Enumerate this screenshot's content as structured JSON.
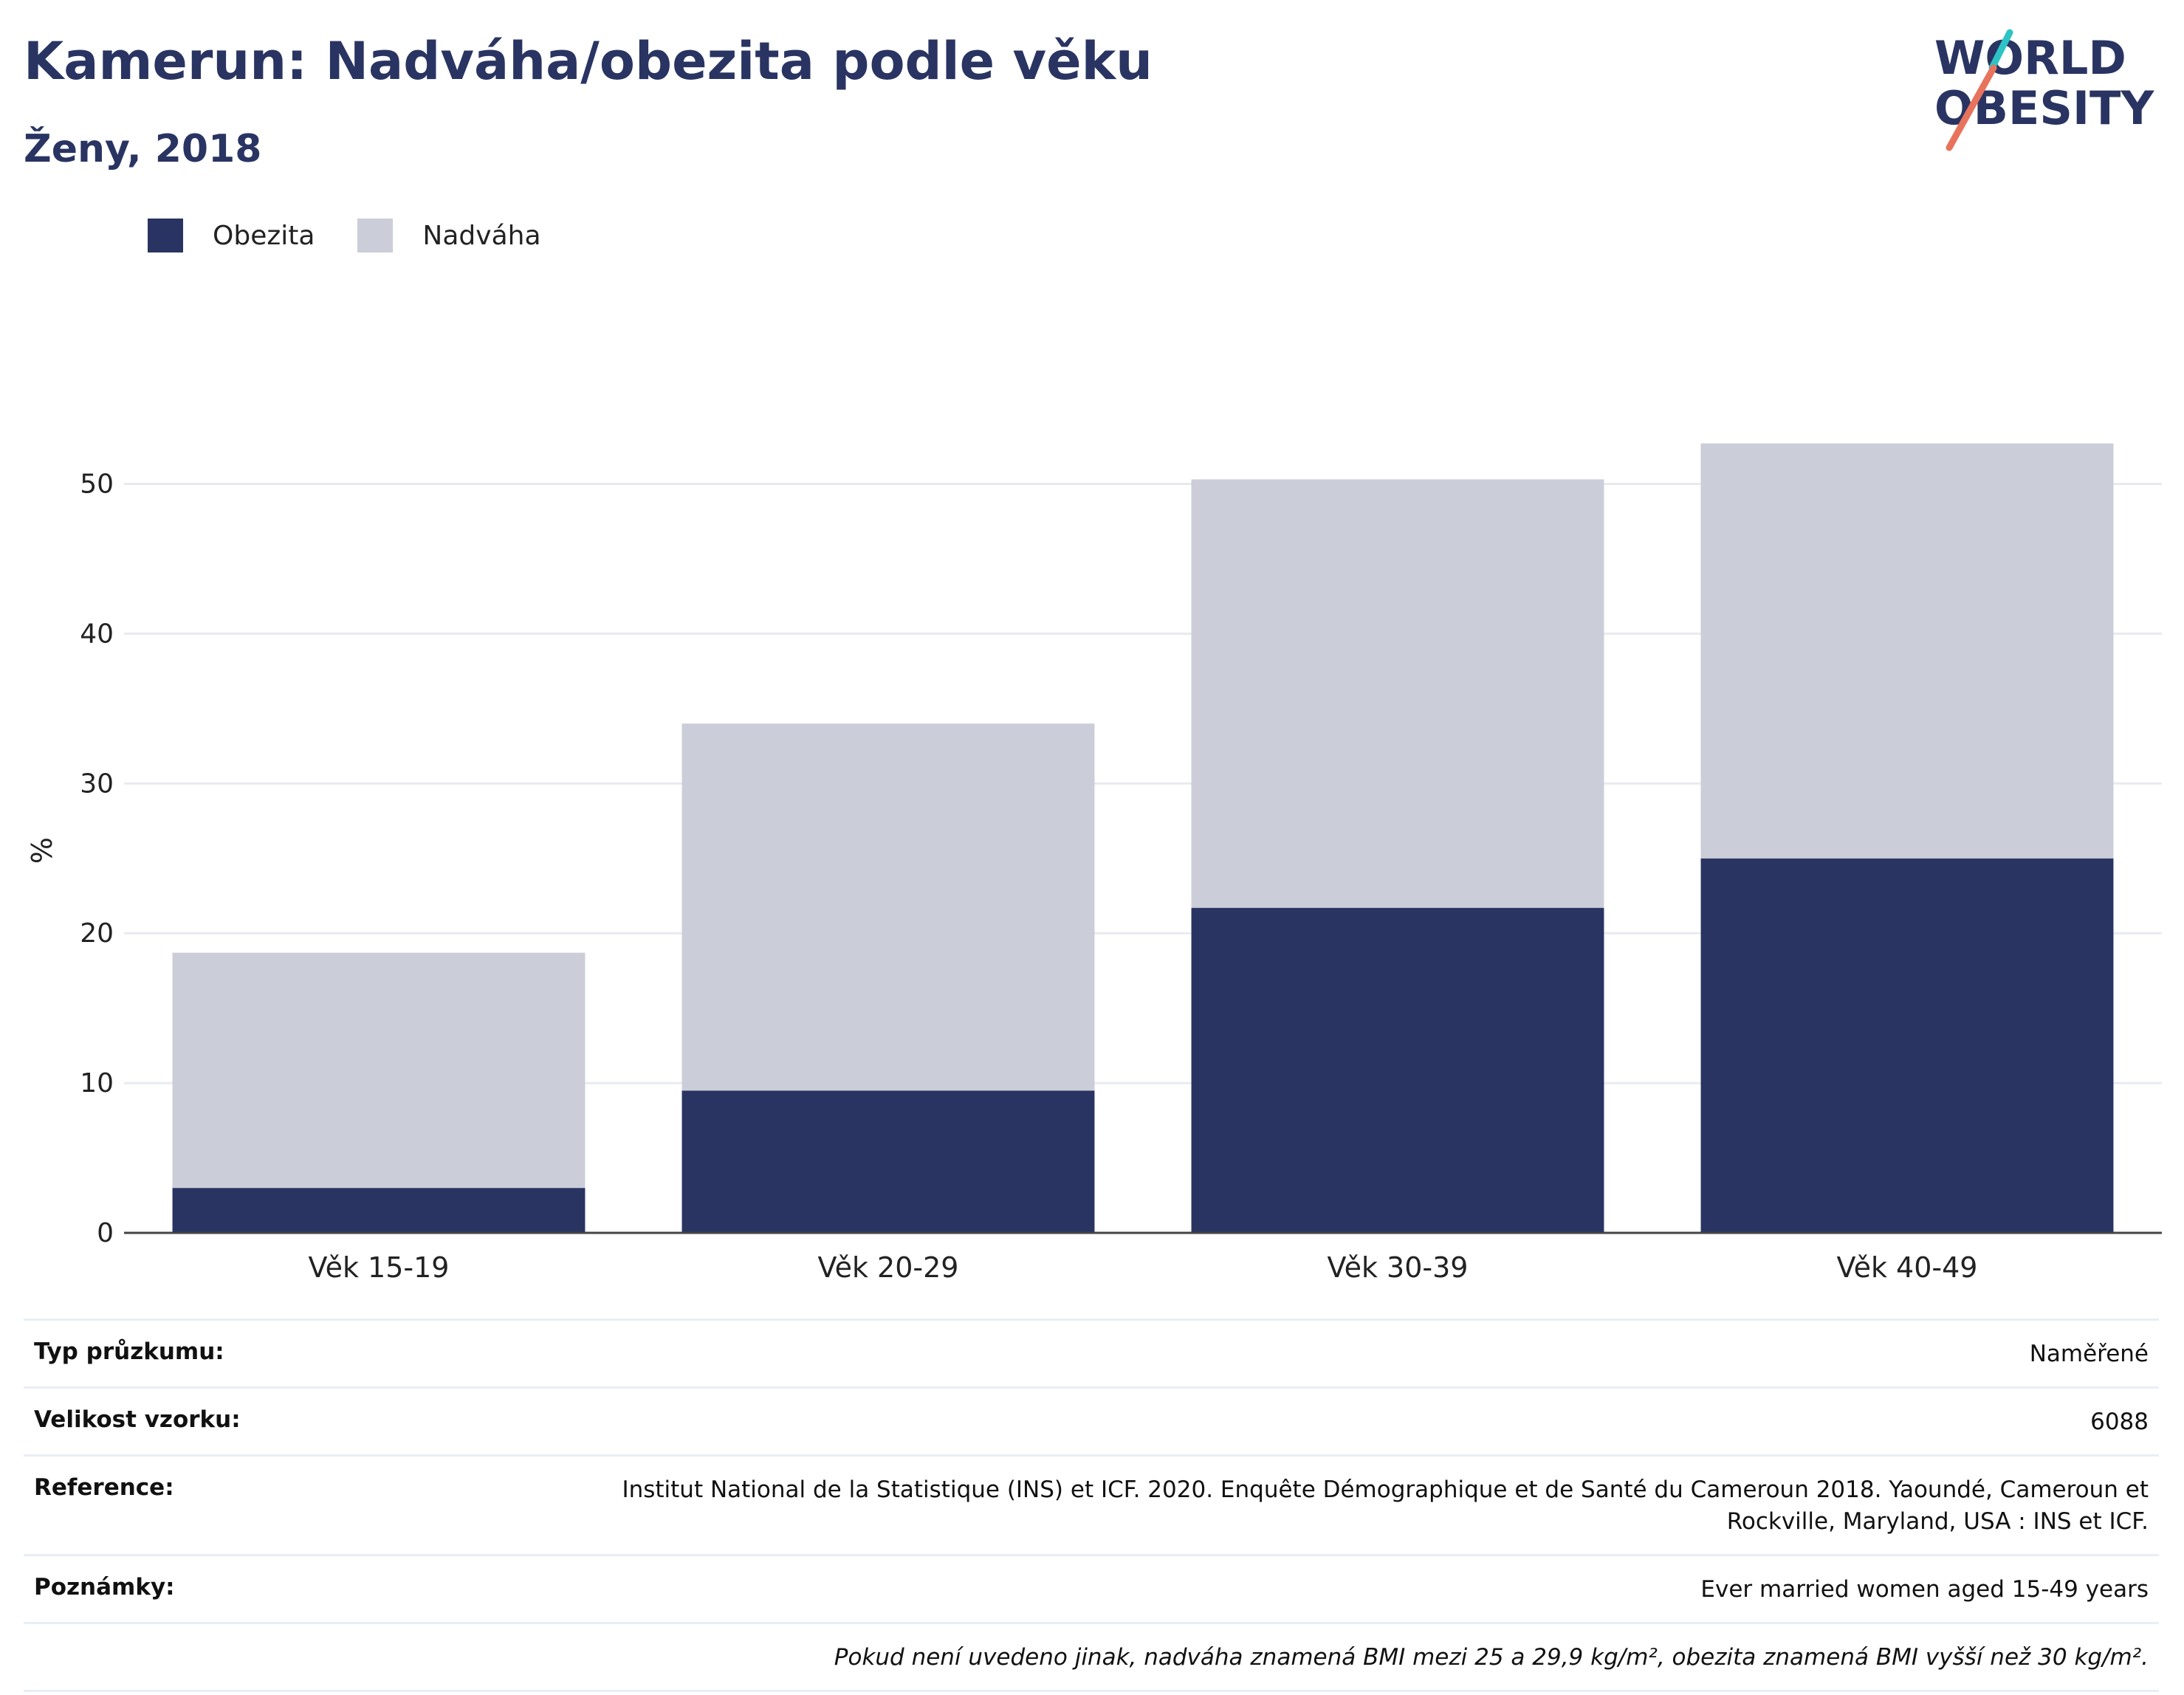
{
  "header": {
    "title": "Kamerun: Nadváha/obezita podle věku",
    "subtitle": "Ženy, 2018"
  },
  "logo": {
    "line1": "WORLD",
    "line2": "OBESITY"
  },
  "colors": {
    "obesity": "#293462",
    "overweight": "#cbcdd8",
    "text": "#293462"
  },
  "legend": {
    "obesity_label": "Obezita",
    "overweight_label": "Nadváha"
  },
  "chart_data": {
    "type": "bar",
    "stacked": true,
    "categories": [
      "Věk 15-19",
      "Věk 20-29",
      "Věk 30-39",
      "Věk 40-49"
    ],
    "series": [
      {
        "name": "Obezita",
        "values": [
          3.0,
          9.5,
          21.7,
          25.0
        ]
      },
      {
        "name": "Nadváha",
        "values": [
          15.7,
          24.5,
          28.6,
          27.7
        ]
      }
    ],
    "ylabel": "%",
    "yticks": [
      0,
      10,
      20,
      30,
      40,
      50
    ],
    "ylim": [
      0,
      55
    ],
    "grid": true,
    "legend_position": "top-left"
  },
  "meta": {
    "survey_type_label": "Typ průzkumu:",
    "survey_type_value": "Naměřené",
    "sample_size_label": "Velikost vzorku:",
    "sample_size_value": "6088",
    "reference_label": "Reference:",
    "reference_value": "Institut National de la Statistique (INS) et ICF. 2020. Enquête Démographique et de Santé du Cameroun 2018. Yaoundé, Cameroun et Rockville, Maryland, USA : INS et ICF.",
    "notes_label": "Poznámky:",
    "notes_value": "Ever married women aged 15-49 years",
    "definition_note": "Pokud není uvedeno jinak, nadváha znamená BMI mezi 25 a 29,9 kg/m², obezita znamená BMI vyšší než 30 kg/m²."
  }
}
